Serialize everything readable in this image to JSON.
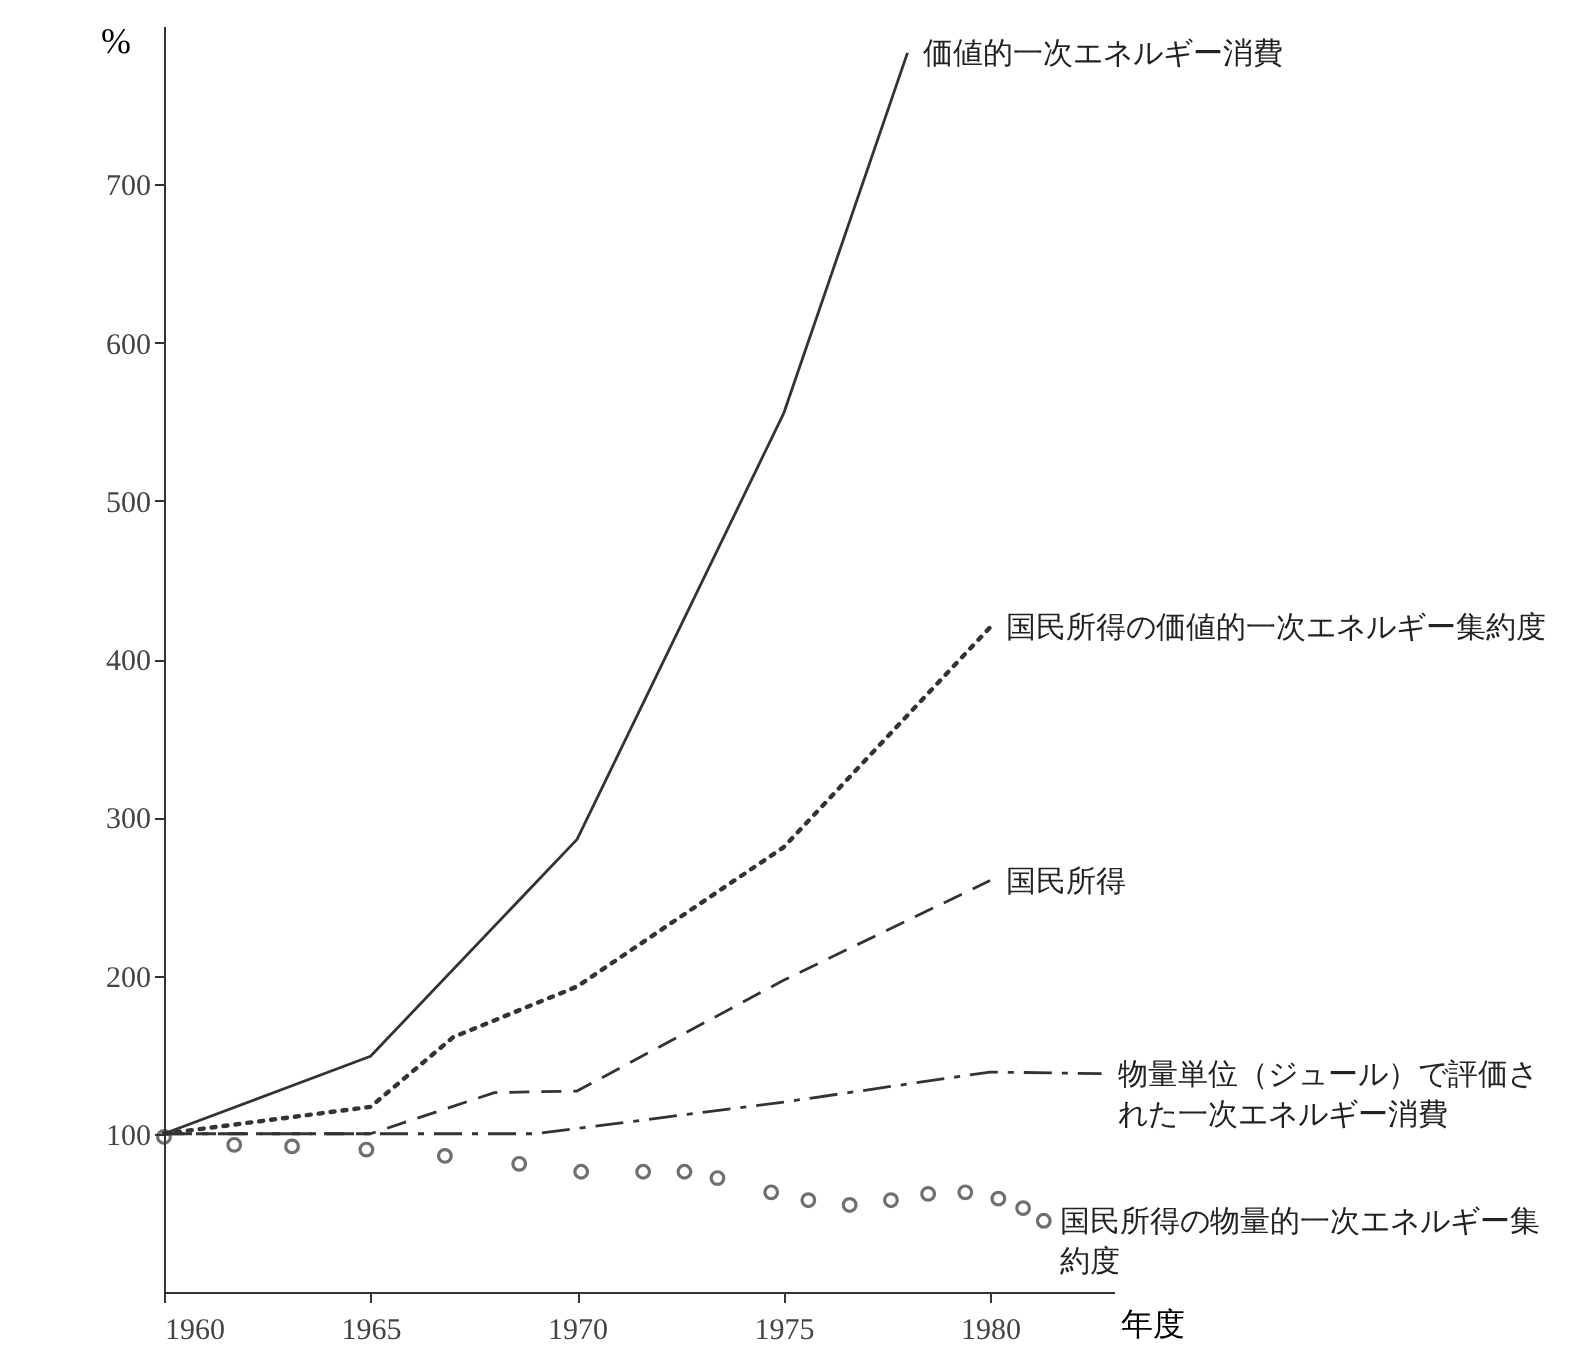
{
  "chart_data": {
    "type": "line",
    "xlabel": "年度",
    "ylabel": "%",
    "xlim": [
      1960,
      1983
    ],
    "ylim": [
      0,
      800
    ],
    "xticks": [
      1960,
      1965,
      1970,
      1975,
      1980
    ],
    "yticks": [
      100,
      200,
      300,
      400,
      500,
      600,
      700
    ],
    "grid": false,
    "series": [
      {
        "name": "価値的一次エネルギー消費",
        "color": "#333333",
        "line_style": "solid",
        "x": [
          1960,
          1965,
          1970,
          1975,
          1978
        ],
        "values": [
          100,
          149,
          286,
          555,
          783
        ]
      },
      {
        "name": "国民所得の価値的一次エネルギー集約度",
        "color": "#333333",
        "line_style": "dotted",
        "x": [
          1960,
          1965,
          1967,
          1970,
          1975,
          1980
        ],
        "values": [
          100,
          117,
          161,
          193,
          281,
          420
        ]
      },
      {
        "name": "国民所得",
        "color": "#333333",
        "line_style": "dashed",
        "x": [
          1960,
          1965,
          1968,
          1970,
          1975,
          1980
        ],
        "values": [
          100,
          100,
          126,
          127,
          197,
          260
        ]
      },
      {
        "name": "物量単位（ジュール）で評価された一次エネルギー消費",
        "color": "#333333",
        "line_style": "dashdot",
        "x": [
          1960,
          1965,
          1969,
          1975,
          1980,
          1982.7
        ],
        "values": [
          100,
          100,
          100,
          120,
          139,
          138
        ]
      },
      {
        "name": "国民所得の物量的一次エネルギー集約度",
        "color": "#333333",
        "type": "scatter",
        "marker": "circle",
        "x": [
          1960,
          1961.7,
          1963.1,
          1964.9,
          1966.8,
          1968.6,
          1970.1,
          1971.6,
          1972.6,
          1973.4,
          1974.7,
          1975.6,
          1976.6,
          1977.6,
          1978.5,
          1979.4,
          1980.2,
          1980.8,
          1981.3
        ],
        "values": [
          98,
          93,
          92,
          90,
          86,
          81,
          76,
          76,
          76,
          72,
          63,
          58,
          55,
          58,
          62,
          63,
          59,
          53,
          45
        ]
      }
    ]
  }
}
